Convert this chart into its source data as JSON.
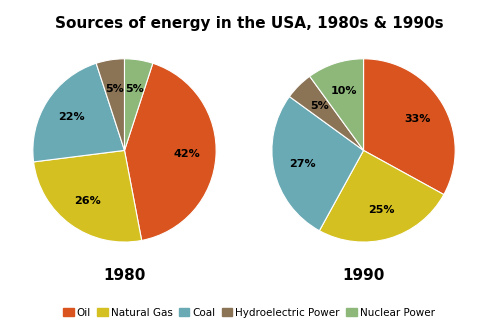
{
  "title": "Sources of energy in the USA, 1980s & 1990s",
  "title_fontsize": 11,
  "colors": [
    "#D9541E",
    "#D4C020",
    "#6AAAB5",
    "#8B7355",
    "#8DB87A"
  ],
  "values_1980": [
    42,
    26,
    22,
    5,
    5
  ],
  "values_1990": [
    33,
    25,
    27,
    5,
    10
  ],
  "label_1980": "1980",
  "label_1990": "1990",
  "label_fontsize": 11,
  "pct_fontsize": 8,
  "background_color": "#ffffff",
  "legend_labels": [
    "Oil",
    "Natural Gas",
    "Coal",
    "Hydroelectric Power",
    "Nuclear Power"
  ],
  "legend_fontsize": 7.5,
  "startangle_1980": 72,
  "startangle_1990": 90
}
